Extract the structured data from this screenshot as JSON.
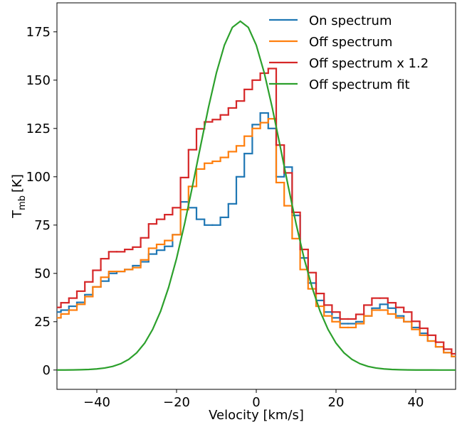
{
  "chart_data": {
    "type": "step",
    "xlabel": "Velocity [km/s]",
    "ylabel": "T",
    "ylabel_sub": "mb",
    "ylabel_unit": "[K]",
    "x": [
      -50,
      -48,
      -46,
      -44,
      -42,
      -40,
      -38,
      -36,
      -34,
      -32,
      -30,
      -28,
      -26,
      -24,
      -22,
      -20,
      -18,
      -16,
      -14,
      -12,
      -10,
      -8,
      -6,
      -4,
      -2,
      0,
      2,
      4,
      6,
      8,
      10,
      12,
      14,
      16,
      18,
      20,
      22,
      24,
      26,
      28,
      30,
      32,
      34,
      36,
      38,
      40,
      42,
      44,
      46,
      48,
      50
    ],
    "series": [
      {
        "name": "On spectrum",
        "color": "#1f77b4",
        "values": [
          30,
          31,
          33,
          35,
          39,
          43,
          46,
          50,
          51,
          52,
          54,
          56,
          60,
          62,
          64,
          70,
          87,
          84,
          78,
          75,
          75,
          79,
          86,
          100,
          112,
          127,
          133,
          125,
          100,
          105,
          80,
          58,
          45,
          36,
          30,
          27,
          24,
          24,
          25,
          28,
          32,
          34,
          32,
          28,
          25,
          22,
          19,
          15,
          12,
          9,
          7
        ]
      },
      {
        "name": "Off spectrum",
        "color": "#ff7f0e",
        "values": [
          27,
          29,
          31,
          34,
          38,
          43,
          48,
          51,
          51,
          52,
          53,
          57,
          63,
          65,
          67,
          70,
          83,
          95,
          104,
          107,
          108,
          110,
          113,
          116,
          121,
          125,
          128,
          130,
          97,
          85,
          68,
          52,
          42,
          33,
          28,
          25,
          22,
          22,
          24,
          28,
          31,
          31,
          29,
          27,
          25,
          21,
          18,
          15,
          12,
          9,
          7
        ]
      },
      {
        "name": "Off spectrum x 1.2",
        "color": "#d62728",
        "values": [
          32.4,
          34.8,
          37.2,
          40.8,
          45.6,
          51.6,
          57.6,
          61.2,
          61.2,
          62.4,
          63.6,
          68.4,
          75.6,
          78,
          80.4,
          84,
          99.6,
          114,
          124.8,
          128.4,
          129.6,
          132,
          135.6,
          139.2,
          145.2,
          150,
          153.6,
          156,
          116.4,
          102,
          81.6,
          62.4,
          50.4,
          39.6,
          33.6,
          30,
          26.4,
          26.4,
          28.8,
          33.6,
          37.2,
          37.2,
          34.8,
          32.4,
          30,
          25.2,
          21.6,
          18,
          14.4,
          10.8,
          8.4
        ]
      },
      {
        "name": "Off spectrum fit",
        "color": "#2ca02c",
        "style": "smooth",
        "values": [
          0.015,
          0.032,
          0.07,
          0.146,
          0.29,
          0.56,
          1.06,
          1.89,
          3.27,
          5.51,
          8.92,
          13.9,
          21.0,
          30.4,
          42.7,
          57.7,
          75.5,
          95.2,
          115.7,
          135.8,
          153.8,
          168.1,
          177.3,
          180.5,
          177.3,
          168.1,
          153.8,
          135.8,
          115.7,
          95.2,
          75.5,
          57.7,
          42.7,
          30.4,
          21.0,
          13.9,
          8.92,
          5.51,
          3.27,
          1.89,
          1.06,
          0.56,
          0.29,
          0.146,
          0.07,
          0.032,
          0.015,
          0.006,
          0.002,
          0.001,
          0.0
        ]
      }
    ],
    "xlim": [
      -50,
      50
    ],
    "ylim": [
      -10,
      190
    ],
    "xticks": [
      {
        "value": -40,
        "label": "−40"
      },
      {
        "value": -20,
        "label": "−20"
      },
      0,
      20,
      40
    ],
    "yticks": [
      0,
      25,
      50,
      75,
      100,
      125,
      150,
      175
    ],
    "legend": "upper right"
  }
}
